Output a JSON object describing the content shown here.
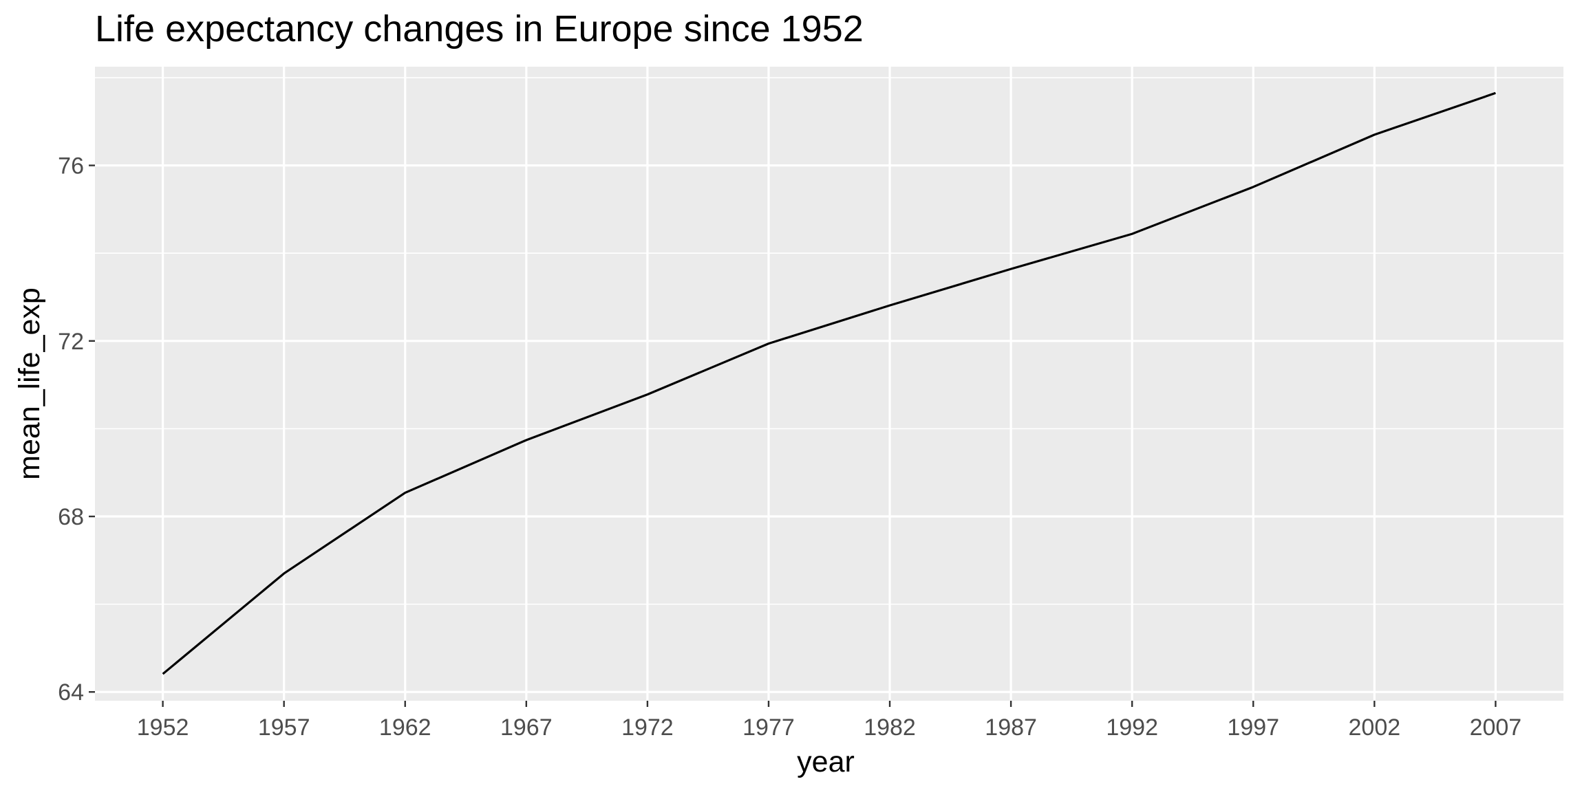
{
  "chart_data": {
    "type": "line",
    "title": "Life expectancy changes in Europe since 1952",
    "xlabel": "year",
    "ylabel": "mean_life_exp",
    "x": [
      1952,
      1957,
      1962,
      1967,
      1972,
      1977,
      1982,
      1987,
      1992,
      1997,
      2002,
      2007
    ],
    "series": [
      {
        "values": [
          64.41,
          66.7,
          68.54,
          69.74,
          70.78,
          71.94,
          72.81,
          73.64,
          74.44,
          75.51,
          76.7,
          77.65
        ]
      }
    ],
    "xlim": [
      1949.2,
      2009.8
    ],
    "ylim": [
      63.8,
      78.25
    ],
    "x_ticks": [
      "1952",
      "1957",
      "1962",
      "1967",
      "1972",
      "1977",
      "1982",
      "1987",
      "1992",
      "1997",
      "2002",
      "2007"
    ],
    "y_ticks": [
      "64",
      "68",
      "72",
      "76"
    ],
    "grid": true,
    "legend": false,
    "colors": {
      "panel_background": "#ebebeb",
      "grid": "#ffffff",
      "line": "#000000",
      "tick_text": "#4d4d4d"
    }
  }
}
